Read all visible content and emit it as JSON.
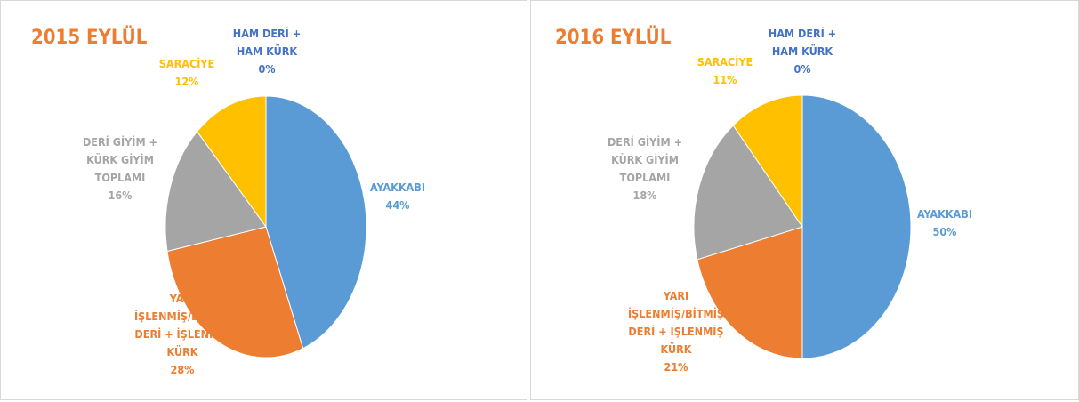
{
  "chart_data": [
    {
      "type": "pie",
      "title": "2015 EYLÜL",
      "categories": [
        "HAM DERİ + HAM KÜRK",
        "AYAKKABI",
        "YARI İŞLENMİŞ/BİTMİŞ DERİ + İŞLENMİŞ KÜRK",
        "DERİ GİYİM + KÜRK GİYİM TOPLAMI",
        "SARACİYE"
      ],
      "values": [
        0,
        44,
        28,
        16,
        12
      ],
      "value_labels": [
        "0%",
        "44%",
        "28%",
        "16%",
        "12%"
      ],
      "colors": [
        "#4472c4",
        "#5b9bd5",
        "#ed7d31",
        "#a5a5a5",
        "#ffc000"
      ]
    },
    {
      "type": "pie",
      "title": "2016 EYLÜL",
      "categories": [
        "HAM DERİ + HAM KÜRK",
        "AYAKKABI",
        "YARI İŞLENMİŞ/BİTMİŞ DERİ + İŞLENMİŞ KÜRK",
        "DERİ GİYİM + KÜRK GİYİM TOPLAMI",
        "SARACİYE"
      ],
      "values": [
        0,
        50,
        21,
        18,
        11
      ],
      "value_labels": [
        "0%",
        "50%",
        "21%",
        "18%",
        "11%"
      ],
      "colors": [
        "#4472c4",
        "#5b9bd5",
        "#ed7d31",
        "#a5a5a5",
        "#ffc000"
      ]
    }
  ]
}
